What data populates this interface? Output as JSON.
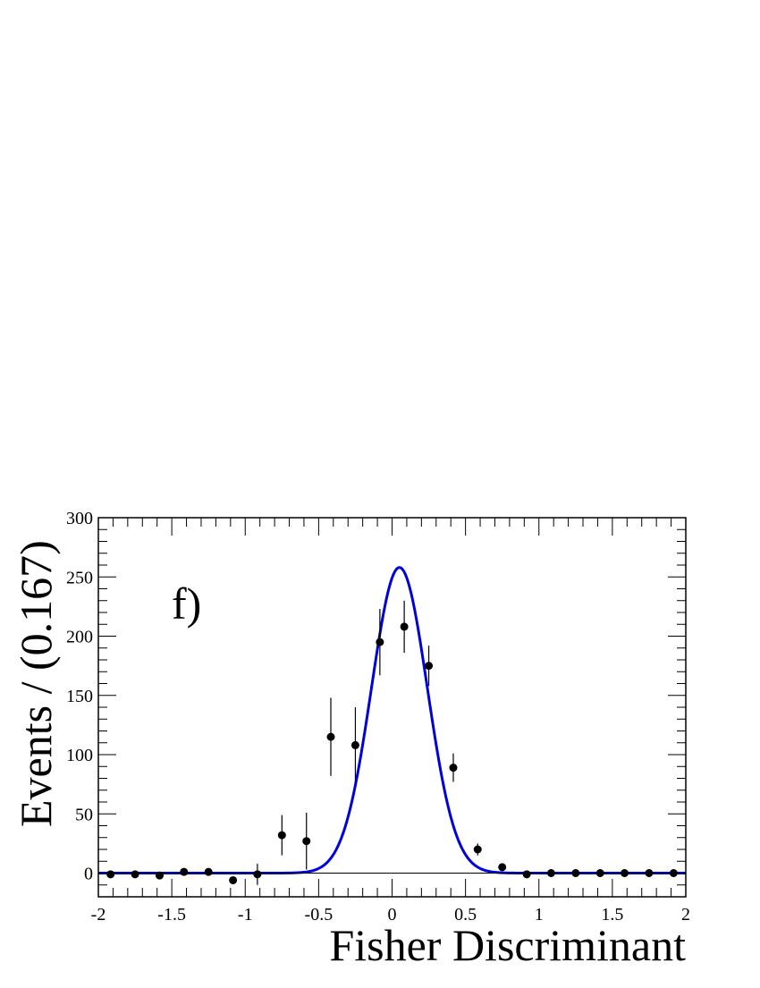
{
  "chart_data": {
    "type": "scatter",
    "panel_label": "f)",
    "xlabel": "Fisher Discriminant",
    "ylabel": "Events / (0.167)",
    "xlim": [
      -2,
      2
    ],
    "ylim": [
      -20,
      300
    ],
    "x_ticks": [
      -2,
      -1.5,
      -1,
      -0.5,
      0,
      0.5,
      1,
      1.5,
      2
    ],
    "x_tick_labels": [
      "-2",
      "-1.5",
      "-1",
      "-0.5",
      "0",
      "0.5",
      "1",
      "1.5",
      "2"
    ],
    "y_ticks": [
      0,
      50,
      100,
      150,
      200,
      250,
      300
    ],
    "y_tick_labels": [
      "0",
      "50",
      "100",
      "150",
      "200",
      "250",
      "300"
    ],
    "grid": false,
    "legend": "none",
    "series": [
      {
        "kind": "points_with_errors",
        "color": "#000000",
        "points": [
          {
            "x": -1.917,
            "y": -1,
            "err": 0
          },
          {
            "x": -1.75,
            "y": -1,
            "err": 0
          },
          {
            "x": -1.583,
            "y": -2,
            "err": 0
          },
          {
            "x": -1.417,
            "y": 1,
            "err": 0
          },
          {
            "x": -1.25,
            "y": 1,
            "err": 0
          },
          {
            "x": -1.083,
            "y": -6,
            "err": 0
          },
          {
            "x": -0.917,
            "y": -1,
            "err": 9
          },
          {
            "x": -0.75,
            "y": 32,
            "err": 17
          },
          {
            "x": -0.583,
            "y": 27,
            "err": 24
          },
          {
            "x": -0.417,
            "y": 115,
            "err": 33
          },
          {
            "x": -0.25,
            "y": 108,
            "err": 32
          },
          {
            "x": -0.083,
            "y": 195,
            "err": 28
          },
          {
            "x": 0.083,
            "y": 208,
            "err": 22
          },
          {
            "x": 0.25,
            "y": 175,
            "err": 17
          },
          {
            "x": 0.417,
            "y": 89,
            "err": 12
          },
          {
            "x": 0.583,
            "y": 20,
            "err": 5
          },
          {
            "x": 0.75,
            "y": 5,
            "err": 2
          },
          {
            "x": 0.917,
            "y": -1,
            "err": 0
          },
          {
            "x": 1.083,
            "y": 0,
            "err": 0
          },
          {
            "x": 1.25,
            "y": 0,
            "err": 0
          },
          {
            "x": 1.417,
            "y": 0,
            "err": 0
          },
          {
            "x": 1.583,
            "y": 0,
            "err": 0
          },
          {
            "x": 1.75,
            "y": 0,
            "err": 0
          },
          {
            "x": 1.917,
            "y": 0,
            "err": 0
          }
        ]
      },
      {
        "kind": "fit_curve",
        "shape": "gaussian",
        "color": "#0000dd",
        "amplitude": 258,
        "mean": 0.05,
        "sigma": 0.19
      }
    ]
  }
}
